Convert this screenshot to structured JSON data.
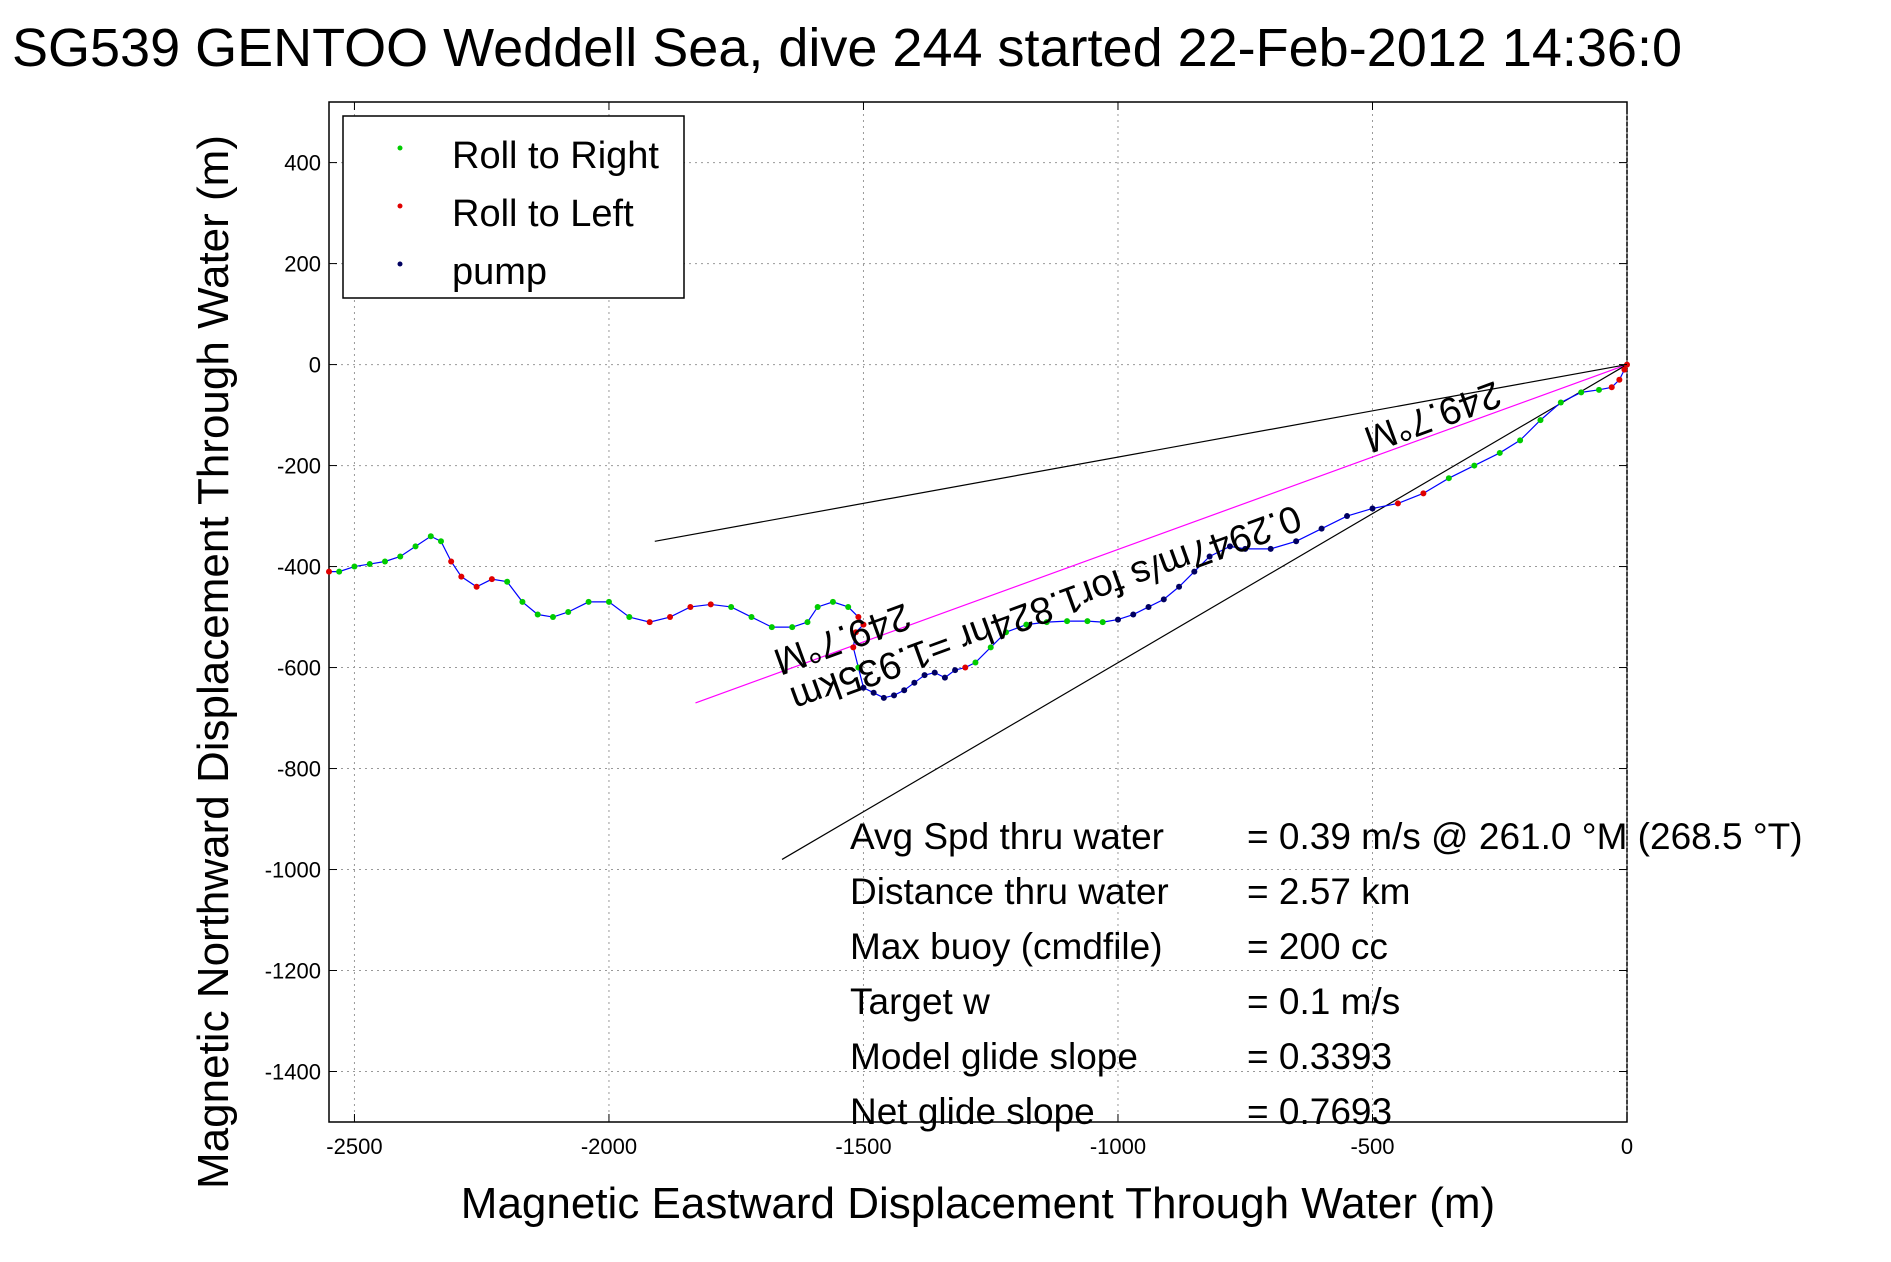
{
  "chart_data": {
    "type": "line",
    "title": "SG539 GENTOO Weddell Sea, dive 244 started 22-Feb-2012 14:36:0",
    "xlabel": "Magnetic Eastward Displacement Through Water (m)",
    "ylabel": "Magnetic Northward Displacement Through Water (m)",
    "xlim": [
      -2550,
      0
    ],
    "ylim": [
      -1500,
      520
    ],
    "xticks": [
      -2500,
      -2000,
      -1500,
      -1000,
      -500,
      0
    ],
    "yticks": [
      400,
      200,
      0,
      -200,
      -400,
      -600,
      -800,
      -1000,
      -1200,
      -1400
    ],
    "grid": true,
    "legend_position": "top-left",
    "legend": [
      {
        "label": "Roll to Right",
        "color": "#00cc00"
      },
      {
        "label": "Roll to Left",
        "color": "#e00000"
      },
      {
        "label": "pump",
        "color": "#000060"
      }
    ],
    "track": {
      "color": "#0000ff",
      "x": [
        0,
        -5,
        -15,
        -30,
        -55,
        -90,
        -130,
        -170,
        -210,
        -250,
        -300,
        -350,
        -400,
        -450,
        -500,
        -550,
        -600,
        -650,
        -700,
        -750,
        -780,
        -820,
        -850,
        -880,
        -910,
        -940,
        -970,
        -1000,
        -1030,
        -1060,
        -1100,
        -1140,
        -1180,
        -1220,
        -1250,
        -1280,
        -1300,
        -1320,
        -1340,
        -1360,
        -1380,
        -1400,
        -1420,
        -1440,
        -1460,
        -1480,
        -1500,
        -1510,
        -1520,
        -1515,
        -1500,
        -1510,
        -1530,
        -1560,
        -1590,
        -1610,
        -1640,
        -1680,
        -1720,
        -1760,
        -1800,
        -1840,
        -1880,
        -1920,
        -1960,
        -2000,
        -2040,
        -2080,
        -2110,
        -2140,
        -2170,
        -2200,
        -2230,
        -2260,
        -2290,
        -2310,
        -2330,
        -2350,
        -2380,
        -2410,
        -2440,
        -2470,
        -2500,
        -2530,
        -2550
      ],
      "y": [
        0,
        -10,
        -30,
        -45,
        -50,
        -55,
        -75,
        -110,
        -150,
        -175,
        -200,
        -225,
        -255,
        -275,
        -285,
        -300,
        -325,
        -350,
        -365,
        -365,
        -360,
        -380,
        -410,
        -440,
        -465,
        -480,
        -495,
        -505,
        -510,
        -508,
        -508,
        -510,
        -515,
        -530,
        -560,
        -590,
        -600,
        -605,
        -620,
        -610,
        -615,
        -630,
        -645,
        -655,
        -660,
        -650,
        -640,
        -600,
        -560,
        -530,
        -515,
        -500,
        -480,
        -470,
        -480,
        -510,
        -520,
        -520,
        -500,
        -480,
        -475,
        -480,
        -500,
        -510,
        -500,
        -470,
        -470,
        -490,
        -500,
        -495,
        -470,
        -430,
        -425,
        -440,
        -420,
        -390,
        -350,
        -340,
        -360,
        -380,
        -390,
        -395,
        -400,
        -410,
        -410
      ]
    },
    "reference_lines": {
      "heading_line": {
        "x": [
          0,
          -1830
        ],
        "y": [
          0,
          -670
        ],
        "color": "#ff00ff"
      },
      "cone_upper": {
        "x": [
          0,
          -1910
        ],
        "y": [
          0,
          -350
        ],
        "color": "#000000"
      },
      "cone_lower": {
        "x": [
          0,
          -1660
        ],
        "y": [
          0,
          -980
        ],
        "color": "#000000"
      }
    },
    "annotations": [
      {
        "text": "249.7°M",
        "x": -1550,
        "y": -520,
        "rotate": 160
      },
      {
        "text": "0.2947m/s for1.824hr =1.935km",
        "x": -1150,
        "y": -460,
        "rotate": 160
      },
      {
        "text": "249.7°M",
        "x": -390,
        "y": -80,
        "rotate": 160
      }
    ],
    "stats": [
      {
        "label": "Avg Spd thru water",
        "value": "=  0.39 m/s @ 261.0 °M (268.5 °T)"
      },
      {
        "label": "Distance thru water",
        "value": "=  2.57 km"
      },
      {
        "label": "Max buoy (cmdfile)",
        "value": "= 200 cc"
      },
      {
        "label": "Target w",
        "value": "= 0.1 m/s"
      },
      {
        "label": "Model glide slope",
        "value": "= 0.3393"
      },
      {
        "label": "Net glide slope",
        "value": "= 0.7693"
      }
    ]
  }
}
